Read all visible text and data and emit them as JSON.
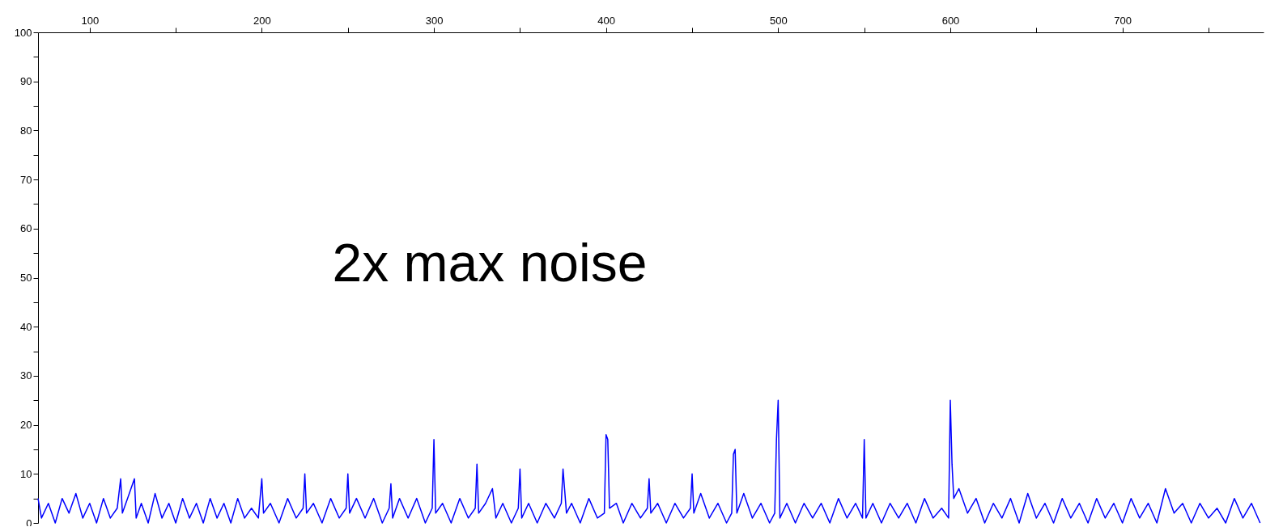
{
  "chart_data": {
    "type": "line",
    "annotations": [
      "2x max noise"
    ],
    "x": [
      70,
      72,
      76,
      80,
      84,
      88,
      92,
      96,
      100,
      104,
      108,
      112,
      116,
      118,
      119,
      122,
      126,
      127,
      130,
      134,
      138,
      142,
      146,
      150,
      154,
      158,
      162,
      166,
      170,
      174,
      178,
      182,
      186,
      190,
      194,
      198,
      200,
      201,
      205,
      210,
      215,
      220,
      224,
      225,
      226,
      230,
      235,
      240,
      245,
      249,
      250,
      251,
      255,
      260,
      265,
      270,
      274,
      275,
      276,
      280,
      285,
      290,
      295,
      299,
      300,
      301,
      305,
      310,
      315,
      320,
      324,
      325,
      326,
      330,
      334,
      336,
      340,
      345,
      349,
      350,
      351,
      355,
      360,
      365,
      370,
      374,
      375,
      377,
      380,
      385,
      390,
      395,
      399,
      400,
      401,
      402,
      406,
      410,
      415,
      420,
      424,
      425,
      426,
      430,
      435,
      440,
      445,
      449,
      450,
      451,
      455,
      460,
      465,
      470,
      473,
      474,
      475,
      476,
      480,
      485,
      490,
      495,
      498,
      499,
      500,
      501,
      505,
      510,
      515,
      520,
      525,
      530,
      535,
      540,
      545,
      549,
      550,
      551,
      555,
      560,
      565,
      570,
      575,
      580,
      585,
      590,
      595,
      599,
      600,
      601,
      602,
      605,
      610,
      615,
      620,
      625,
      630,
      635,
      640,
      645,
      650,
      655,
      660,
      665,
      670,
      675,
      680,
      685,
      690,
      695,
      700,
      705,
      710,
      715,
      720,
      725,
      730,
      735,
      740,
      745,
      750,
      755,
      760,
      765,
      770,
      775,
      780
    ],
    "series": [
      {
        "color": "#0000ff",
        "values": [
          5,
          1,
          4,
          0,
          5,
          2,
          6,
          1,
          4,
          0,
          5,
          1,
          3,
          9,
          2,
          5,
          9,
          1,
          4,
          0,
          6,
          1,
          4,
          0,
          5,
          1,
          4,
          0,
          5,
          1,
          4,
          0,
          5,
          1,
          3,
          1,
          9,
          2,
          4,
          0,
          5,
          1,
          3,
          10,
          2,
          4,
          0,
          5,
          1,
          3,
          10,
          2,
          5,
          1,
          5,
          0,
          3,
          8,
          1,
          5,
          1,
          5,
          0,
          3,
          17,
          2,
          4,
          0,
          5,
          1,
          3,
          12,
          2,
          4,
          7,
          1,
          4,
          0,
          3,
          11,
          1,
          4,
          0,
          4,
          1,
          4,
          11,
          2,
          4,
          0,
          5,
          1,
          2,
          18,
          17,
          3,
          4,
          0,
          4,
          1,
          3,
          9,
          2,
          4,
          0,
          4,
          1,
          3,
          10,
          2,
          6,
          1,
          4,
          0,
          2,
          14,
          15,
          2,
          6,
          1,
          4,
          0,
          2,
          17,
          25,
          1,
          4,
          0,
          4,
          1,
          4,
          0,
          5,
          1,
          4,
          1,
          17,
          1,
          4,
          0,
          4,
          1,
          4,
          0,
          5,
          1,
          3,
          1,
          25,
          12,
          5,
          7,
          2,
          5,
          0,
          4,
          1,
          5,
          0,
          6,
          1,
          4,
          0,
          5,
          1,
          4,
          0,
          5,
          1,
          4,
          0,
          5,
          1,
          4,
          0,
          7,
          2,
          4,
          0,
          4,
          1,
          3,
          0,
          5,
          1,
          4,
          0
        ]
      }
    ],
    "xlim": [
      70,
      782
    ],
    "xticks": [
      100,
      {
        "value": 150,
        "label": null
      },
      200,
      {
        "value": 250,
        "label": null
      },
      300,
      {
        "value": 350,
        "label": null
      },
      400,
      {
        "value": 450,
        "label": null
      },
      500,
      {
        "value": 550,
        "label": null
      },
      600,
      {
        "value": 650,
        "label": null
      },
      700,
      {
        "value": 750,
        "label": null
      }
    ],
    "ylim": [
      0,
      100
    ],
    "yticks": [
      0,
      {
        "value": 5,
        "label": null
      },
      10,
      {
        "value": 15,
        "label": null
      },
      20,
      {
        "value": 25,
        "label": null
      },
      30,
      {
        "value": 35,
        "label": null
      },
      40,
      {
        "value": 45,
        "label": null
      },
      50,
      {
        "value": 55,
        "label": null
      },
      60,
      {
        "value": 65,
        "label": null
      },
      70,
      {
        "value": 75,
        "label": null
      },
      80,
      {
        "value": 85,
        "label": null
      },
      90,
      {
        "value": 95,
        "label": null
      },
      100
    ]
  }
}
